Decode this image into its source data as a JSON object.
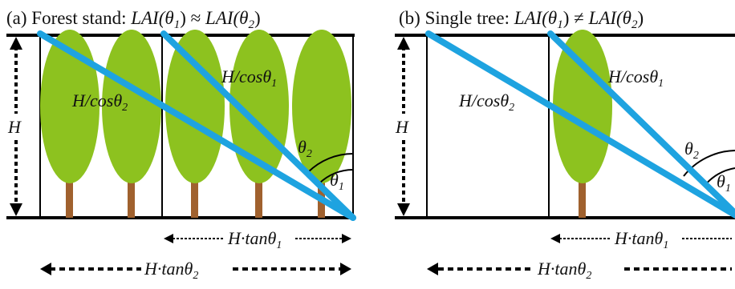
{
  "panels": [
    {
      "id": "a",
      "title_prefix": "(a) Forest stand: ",
      "title_lhs": "LAI(θ",
      "title_lhs_sub": "1",
      "title_lhs_close": ")",
      "title_rel": " ≈ ",
      "title_rhs": "LAI(θ",
      "title_rhs_sub": "2",
      "title_rhs_close": ")",
      "height_label": "H",
      "path1_label": "H/cosθ",
      "path1_sub": "1",
      "path2_label": "H/cosθ",
      "path2_sub": "2",
      "angle1_label": "θ",
      "angle1_sub": "1",
      "angle2_label": "θ",
      "angle2_sub": "2",
      "dim1_label": "H·tanθ",
      "dim1_sub": "1",
      "dim2_label": "H·tanθ",
      "dim2_sub": "2"
    },
    {
      "id": "b",
      "title_prefix": "(b) Single tree: ",
      "title_lhs": "LAI(θ",
      "title_lhs_sub": "1",
      "title_lhs_close": ")",
      "title_rel": " ≠ ",
      "title_rhs": "LAI(θ",
      "title_rhs_sub": "2",
      "title_rhs_close": ")",
      "height_label": "H",
      "path1_label": "H/cosθ",
      "path1_sub": "1",
      "path2_label": "H/cosθ",
      "path2_sub": "2",
      "angle1_label": "θ",
      "angle1_sub": "1",
      "angle2_label": "θ",
      "angle2_sub": "2",
      "dim1_label": "H·tanθ",
      "dim1_sub": "1",
      "dim2_label": "H·tanθ",
      "dim2_sub": "2"
    }
  ],
  "colors": {
    "crown": "#8dc21f",
    "trunk": "#a0612e",
    "ray": "#1ea3e0",
    "line": "#000000"
  }
}
